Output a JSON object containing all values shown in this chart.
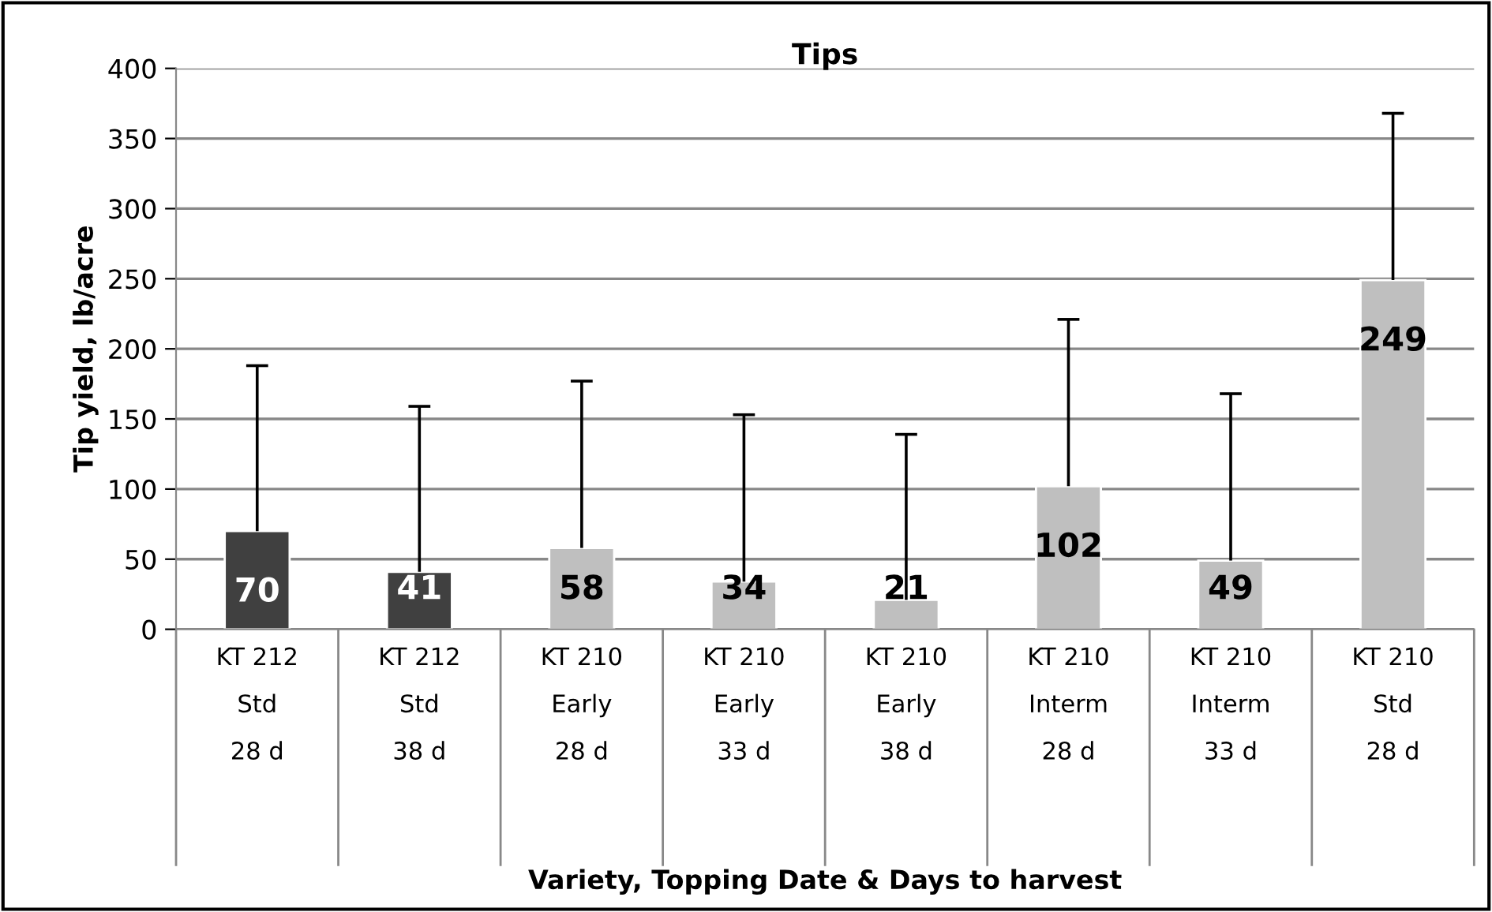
{
  "chart_data": {
    "type": "bar",
    "title": "Tips",
    "xlabel": "Variety, Topping Date & Days to harvest",
    "ylabel": "Tip yield, lb/acre",
    "categories": [
      "KT 212\nStd\n28 d",
      "KT 212\nStd\n38 d",
      "KT 210\nEarly\n28 d",
      "KT 210\nEarly\n33 d",
      "KT 210\nEarly\n38 d",
      "KT 210\nInterm\n28 d",
      "KT 210\nInterm\n33 d",
      "KT 210\nStd\n28 d"
    ],
    "values": [
      70,
      41,
      58,
      34,
      21,
      102,
      49,
      249
    ],
    "colors": [
      "#404040",
      "#404040",
      "#bfbfbf",
      "#bfbfbf",
      "#bfbfbf",
      "#bfbfbf",
      "#bfbfbf",
      "#bfbfbf"
    ],
    "errors": [
      [
        70,
        188
      ],
      [
        41,
        159
      ],
      [
        58,
        177
      ],
      [
        34,
        153
      ],
      [
        21,
        139
      ],
      [
        102,
        221
      ],
      [
        49,
        168
      ],
      [
        249,
        368
      ]
    ],
    "data_labels": true,
    "ylim": [
      0,
      400
    ],
    "yticks": [
      0,
      50,
      100,
      150,
      200,
      250,
      300,
      350,
      400
    ],
    "grid": "y",
    "legend": false
  }
}
